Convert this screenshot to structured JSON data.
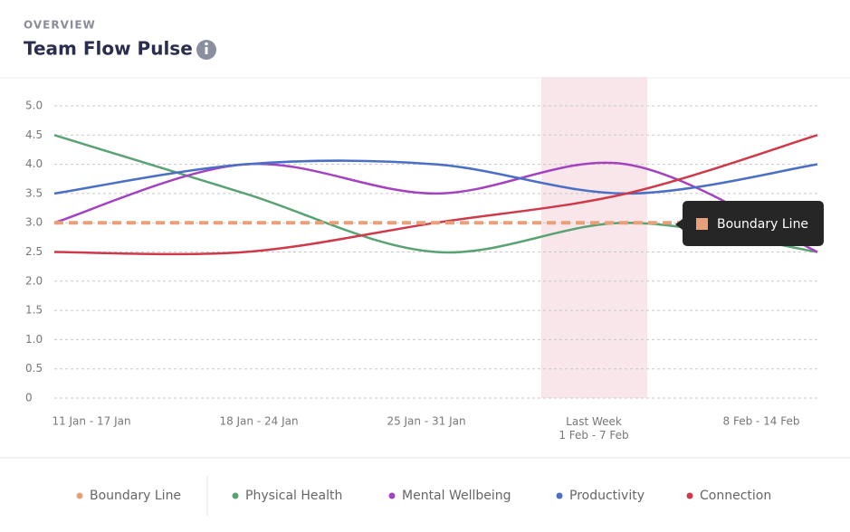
{
  "chart_data": {
    "type": "line",
    "eyebrow": "OVERVIEW",
    "title": "Team Flow Pulse",
    "categories": [
      "11 Jan - 17 Jan",
      "18 Jan - 24 Jan",
      "25 Jan - 31 Jan",
      "Last Week\n1 Feb - 7 Feb",
      "8 Feb - 14 Feb"
    ],
    "highlight_category": 3,
    "series": [
      {
        "name": "Boundary Line",
        "color": "#e8a07a",
        "dashed": true,
        "values": [
          3.0,
          3.0,
          3.0,
          3.0,
          3.0
        ]
      },
      {
        "name": "Physical Health",
        "color": "#5aa274",
        "values": [
          4.5,
          3.5,
          2.5,
          3.0,
          2.5
        ]
      },
      {
        "name": "Mental Wellbeing",
        "color": "#a443c0",
        "values": [
          3.0,
          4.0,
          3.5,
          4.0,
          2.5
        ]
      },
      {
        "name": "Productivity",
        "color": "#4a6fc4",
        "values": [
          3.5,
          4.0,
          4.0,
          3.5,
          4.0
        ]
      },
      {
        "name": "Connection",
        "color": "#cf3a4a",
        "values": [
          2.5,
          2.5,
          3.0,
          3.5,
          4.5
        ]
      }
    ],
    "ylim": [
      0,
      5
    ],
    "yticks": [
      0,
      0.5,
      {
        "value": 1,
        "label": "1.0"
      },
      1.5,
      {
        "value": 2,
        "label": "2.0"
      },
      2.5,
      {
        "value": 3,
        "label": "3.0"
      },
      3.5,
      {
        "value": 4,
        "label": "4.0"
      },
      4.5,
      {
        "value": 5,
        "label": "5.0"
      }
    ],
    "grid": true,
    "tooltip_series": 0,
    "legend": "bottom"
  }
}
